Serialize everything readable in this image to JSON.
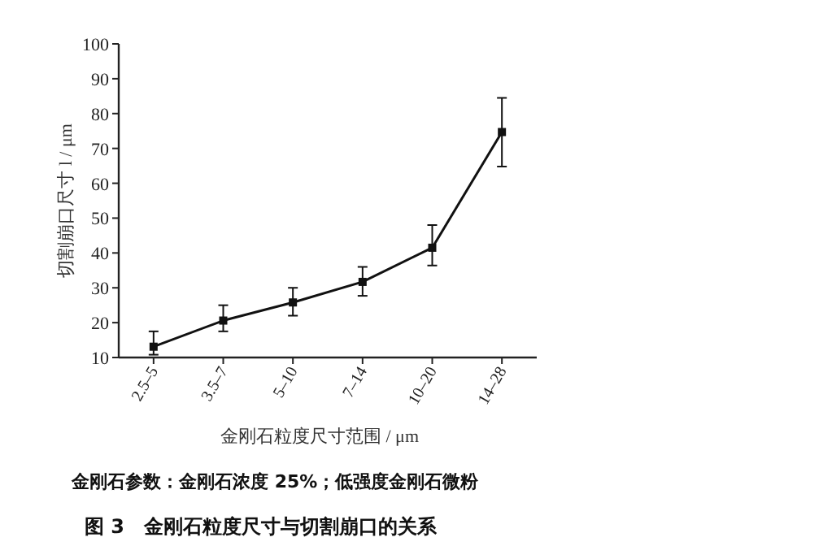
{
  "chart_data": {
    "type": "line",
    "title": "图 3　金刚石粒度尺寸与切割崩口的关系",
    "xlabel": "金刚石粒度尺寸范围 / μm",
    "ylabel": "切割崩口尺寸 l / μm",
    "annotations": [
      "金刚石参数：金刚石浓度 25%；低强度金刚石微粉"
    ],
    "categories": [
      "2.5–5",
      "3.5–7",
      "5–10",
      "7–14",
      "10–20",
      "14–28"
    ],
    "values": [
      13.1,
      20.6,
      25.8,
      31.7,
      41.5,
      74.7
    ],
    "errors": [
      [
        10.8,
        17.5
      ],
      [
        17.5,
        25
      ],
      [
        22,
        30
      ],
      [
        27.7,
        36
      ],
      [
        36.4,
        48
      ],
      [
        64.8,
        84.5
      ]
    ],
    "color": "#111111",
    "marker": "square",
    "line_style": "solid",
    "ylim": [
      10,
      100
    ],
    "yticks": [
      10,
      20,
      30,
      40,
      50,
      60,
      70,
      80,
      90,
      100
    ]
  }
}
